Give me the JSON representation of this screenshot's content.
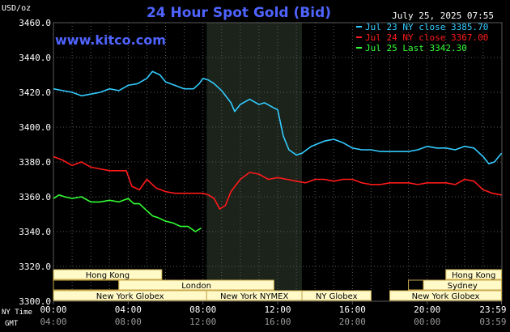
{
  "colors": {
    "background": "#000000",
    "grid": "#5a5a5a",
    "axis_text": "#ffffff",
    "title": "#4f63ff",
    "site": "#4f63ff",
    "session_fill": "#1a1f1a",
    "session_box_fill": "#fffac8",
    "session_box_border": "#c8a84a",
    "session_text": "#000000",
    "nymex_shade": "#1b231b"
  },
  "chart_data": {
    "type": "line",
    "title": "24 Hour Spot Gold (Bid)",
    "site": "www.kitco.com",
    "date_label": "July 25, 2025 07:55",
    "yunit": "USD/oz",
    "ylim": [
      3300,
      3460
    ],
    "yticks": [
      "3300.0",
      "3320.0",
      "3340.0",
      "3360.0",
      "3380.0",
      "3400.0",
      "3420.0",
      "3440.0",
      "3460.0"
    ],
    "xlim": [
      0,
      24
    ],
    "xticks": [
      {
        "h": 0,
        "ny": "00:00",
        "gmt": "04:00"
      },
      {
        "h": 4,
        "ny": "04:00",
        "gmt": "08:00"
      },
      {
        "h": 8,
        "ny": "08:00",
        "gmt": "12:00"
      },
      {
        "h": 12,
        "ny": "12:00",
        "gmt": "16:00"
      },
      {
        "h": 16,
        "ny": "16:00",
        "gmt": "20:00"
      },
      {
        "h": 20,
        "ny": "20:00",
        "gmt": "00:00"
      },
      {
        "h": 23.98,
        "ny": "23:59",
        "gmt": "03:59"
      }
    ],
    "x_row_labels": {
      "ny": "NY Time",
      "gmt": "GMT"
    },
    "nymex_shade": [
      8.2,
      13.3
    ],
    "legend": [
      {
        "label": "Jul 23 NY close 3385.70",
        "color": "#33ccff"
      },
      {
        "label": "Jul 24 NY close 3367.00",
        "color": "#ff1a1a"
      },
      {
        "label": "Jul 25 Last 3342.30",
        "color": "#33ff33"
      }
    ],
    "series": [
      {
        "name": "Jul 23 NY close 3385.70",
        "color": "#33ccff",
        "x": [
          0,
          0.5,
          1,
          1.5,
          2,
          2.5,
          3,
          3.5,
          4,
          4.5,
          5,
          5.3,
          5.7,
          6,
          6.5,
          7,
          7.5,
          7.8,
          8,
          8.3,
          8.6,
          9,
          9.5,
          9.7,
          10,
          10.5,
          11,
          11.3,
          11.8,
          12,
          12.3,
          12.6,
          13,
          13.3,
          13.8,
          14.5,
          15,
          15.5,
          16,
          16.5,
          17,
          17.5,
          18,
          18.5,
          19,
          19.5,
          20,
          20.5,
          21,
          21.5,
          22,
          22.5,
          23,
          23.3,
          23.6,
          23.98
        ],
        "y": [
          3422,
          3421,
          3420,
          3418,
          3419,
          3420,
          3422,
          3421,
          3424,
          3425,
          3428,
          3432,
          3430,
          3426,
          3424,
          3422,
          3422,
          3425,
          3428,
          3427,
          3425,
          3421,
          3414,
          3409,
          3413,
          3416,
          3413,
          3414,
          3411,
          3410,
          3395,
          3387,
          3384,
          3385,
          3389,
          3392,
          3393,
          3391,
          3388,
          3387,
          3387,
          3386,
          3386,
          3386,
          3386,
          3387,
          3389,
          3388,
          3388,
          3387,
          3389,
          3388,
          3383,
          3379,
          3380,
          3385
        ]
      },
      {
        "name": "Jul 24 NY close 3367.00",
        "color": "#ff1a1a",
        "x": [
          0,
          0.5,
          1,
          1.5,
          2,
          2.5,
          3,
          3.5,
          3.9,
          4.2,
          4.6,
          5,
          5.5,
          6,
          6.5,
          7,
          7.5,
          8,
          8.3,
          8.6,
          8.9,
          9.2,
          9.5,
          10,
          10.5,
          11,
          11.5,
          12,
          12.5,
          13,
          13.5,
          14,
          14.5,
          15,
          15.5,
          16,
          16.5,
          17,
          17.5,
          18,
          18.5,
          19,
          19.5,
          20,
          20.5,
          21,
          21.5,
          22,
          22.5,
          23,
          23.5,
          23.98
        ],
        "y": [
          3383,
          3381,
          3378,
          3380,
          3377,
          3376,
          3375,
          3375,
          3375,
          3366,
          3364,
          3370,
          3365,
          3363,
          3362,
          3362,
          3362,
          3362,
          3361,
          3359,
          3353,
          3355,
          3363,
          3370,
          3374,
          3373,
          3370,
          3371,
          3370,
          3369,
          3368,
          3370,
          3370,
          3369,
          3370,
          3370,
          3368,
          3367,
          3367,
          3368,
          3368,
          3368,
          3367,
          3368,
          3368,
          3368,
          3367,
          3370,
          3369,
          3364,
          3362,
          3361
        ]
      },
      {
        "name": "Jul 25 Last 3342.30",
        "color": "#33ff33",
        "x": [
          0,
          0.3,
          0.6,
          1,
          1.5,
          2,
          2.5,
          3,
          3.5,
          4,
          4.3,
          4.6,
          5,
          5.3,
          5.6,
          6,
          6.4,
          6.8,
          7.2,
          7.6,
          7.9
        ],
        "y": [
          3359,
          3361,
          3360,
          3359,
          3360,
          3357,
          3357,
          3358,
          3357,
          3359,
          3356,
          3356,
          3352,
          3349,
          3348,
          3346,
          3345,
          3343,
          3343,
          3340,
          3342
        ]
      }
    ],
    "sessions": [
      {
        "label": "Hong Kong",
        "row": 0,
        "start": 0,
        "end": 5.8
      },
      {
        "label": "London",
        "row": 1,
        "start": 3.5,
        "end": 11.8
      },
      {
        "label": "New York Globex",
        "row": 2,
        "start": 0,
        "end": 8.2
      },
      {
        "label": "New York NYMEX",
        "row": 2,
        "start": 8.2,
        "end": 13.3
      },
      {
        "label": "NY Globex",
        "row": 2,
        "start": 13.3,
        "end": 17.0
      },
      {
        "label": "Hong Kong",
        "row": 0,
        "start": 21.0,
        "end": 23.98
      },
      {
        "label": "Sydney",
        "row": 1,
        "start": 19.8,
        "end": 23.98
      },
      {
        "label": "New York Globex",
        "row": 2,
        "start": 18.0,
        "end": 23.98
      }
    ],
    "session_stubs": [
      {
        "row": 0,
        "start": 0,
        "end": 1.0
      },
      {
        "row": 1,
        "start": 0,
        "end": 3.5
      },
      {
        "row": 1,
        "start": 19.0,
        "end": 19.8
      }
    ]
  }
}
